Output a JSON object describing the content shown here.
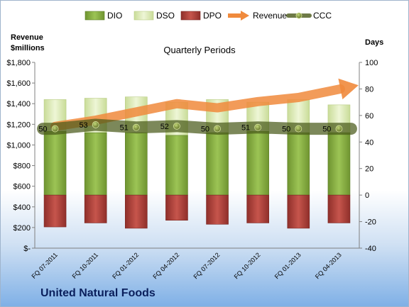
{
  "chart_data": {
    "type": "bar",
    "title": "Quarterly Periods",
    "company": "United Natural Foods",
    "left_axis_title": [
      "Revenue",
      "$millions"
    ],
    "right_axis_title": "Days",
    "left_axis": {
      "min": 0,
      "max": 1800,
      "ticks": [
        "$-",
        "$200",
        "$400",
        "$600",
        "$800",
        "$1,000",
        "$1,200",
        "$1,400",
        "$1,600",
        "$1,800"
      ]
    },
    "right_axis": {
      "min": -40,
      "max": 100,
      "ticks": [
        "-40",
        "-20",
        "0",
        "20",
        "40",
        "60",
        "80",
        "100"
      ]
    },
    "legend": [
      "DIO",
      "DSO",
      "DPO",
      "Revenue",
      "CCC"
    ],
    "legend_position": "top",
    "grid": false,
    "categories": [
      "FQ 07-2011",
      "FQ 10-2011",
      "FQ 01-2012",
      "FQ 04-2012",
      "FQ 07-2012",
      "FQ 10-2012",
      "FQ 01-2013",
      "FQ 04-2013"
    ],
    "series": [
      {
        "name": "DIO",
        "axis": "days",
        "stack": "positive",
        "values": [
          48,
          47,
          47,
          45,
          47,
          48,
          47,
          47
        ]
      },
      {
        "name": "DSO",
        "axis": "days",
        "stack": "positive",
        "values": [
          24,
          26,
          27,
          25,
          25,
          22,
          25,
          21
        ]
      },
      {
        "name": "DPO",
        "axis": "days",
        "stack": "negative",
        "values": [
          -24,
          -21,
          -25,
          -19,
          -22,
          -21,
          -25,
          -21
        ]
      },
      {
        "name": "Revenue",
        "axis": "revenue",
        "type": "line",
        "values": [
          1180,
          1240,
          1320,
          1400,
          1360,
          1420,
          1460,
          1540
        ]
      },
      {
        "name": "CCC",
        "axis": "days",
        "type": "line",
        "values": [
          50,
          53,
          51,
          52,
          50,
          51,
          50,
          50
        ]
      }
    ],
    "colors": {
      "DIO": "#8db446",
      "DSO": "#d9e8b0",
      "DPO": "#b5443d",
      "Revenue": "#f08a3c",
      "CCC": "#5b6b22"
    }
  }
}
